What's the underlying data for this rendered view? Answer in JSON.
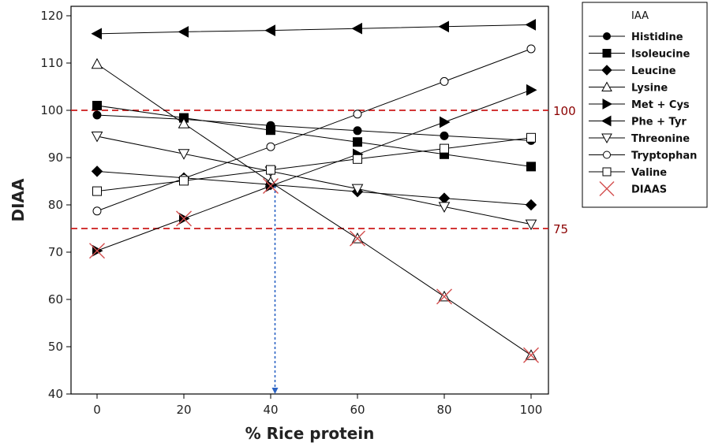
{
  "chart_data": {
    "type": "line",
    "xlabel": "% Rice protein",
    "ylabel": "DIAA",
    "xlim": [
      -6,
      104
    ],
    "ylim": [
      40,
      122
    ],
    "xticks": [
      0,
      20,
      40,
      60,
      80,
      100
    ],
    "yticks": [
      40,
      50,
      60,
      70,
      80,
      90,
      100,
      110,
      120
    ],
    "grid": false,
    "legend_position": "right",
    "legend_title": "IAA",
    "x": [
      0,
      20,
      40,
      60,
      80,
      100
    ],
    "series": [
      {
        "name": "Histidine",
        "marker": "circle-filled",
        "values": [
          99,
          98.1,
          96.8,
          95.7,
          94.6,
          93.6
        ]
      },
      {
        "name": "Isoleucine",
        "marker": "square-filled",
        "values": [
          101,
          98.4,
          95.8,
          93.3,
          90.7,
          88.1
        ]
      },
      {
        "name": "Leucine",
        "marker": "diamond-filled",
        "values": [
          87.1,
          85.7,
          84.3,
          82.8,
          81.4,
          80
        ]
      },
      {
        "name": "Lysine",
        "marker": "triangle-up-open",
        "values": [
          109.8,
          97.2,
          84.8,
          72.9,
          60.6,
          48.2
        ]
      },
      {
        "name": "Met + Cys",
        "marker": "triangle-right-filled",
        "values": [
          70.3,
          77.1,
          84,
          90.7,
          97.5,
          104.3
        ]
      },
      {
        "name": "Phe + Tyr",
        "marker": "triangle-left-filled",
        "values": [
          116.2,
          116.6,
          116.9,
          117.3,
          117.7,
          118.1
        ]
      },
      {
        "name": "Threonine",
        "marker": "triangle-down-open",
        "values": [
          94.5,
          90.8,
          87.1,
          83.4,
          79.6,
          75.9
        ]
      },
      {
        "name": "Tryptophan",
        "marker": "circle-open",
        "values": [
          78.7,
          85.6,
          92.3,
          99.2,
          106.1,
          113
        ]
      },
      {
        "name": "Valine",
        "marker": "square-open",
        "values": [
          82.9,
          85.1,
          87.4,
          89.7,
          91.9,
          94.2
        ]
      }
    ],
    "diaas": {
      "name": "DIAAS",
      "marker": "x",
      "color": "#d45050",
      "values": [
        70.3,
        77.1,
        84,
        72.9,
        60.6,
        48.2
      ]
    },
    "reference_lines": [
      {
        "y": 100,
        "label": "100",
        "color": "#cc1a1a",
        "style": "dashed"
      },
      {
        "y": 75,
        "label": "75",
        "color": "#cc1a1a",
        "style": "dashed"
      }
    ],
    "annotation_arrow": {
      "x": 41,
      "y_from": 84,
      "y_to": 40,
      "color": "#2a62c4",
      "style": "dotted"
    },
    "line_color": "#000000",
    "ref_label_color": "#8b0000"
  }
}
